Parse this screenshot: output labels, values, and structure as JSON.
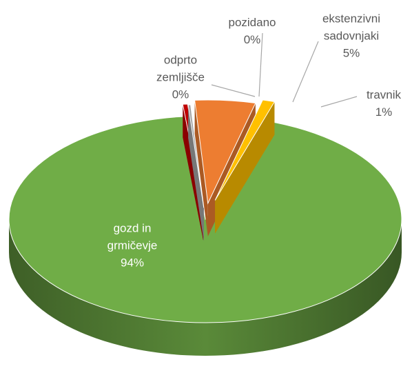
{
  "chart_data": {
    "type": "pie3d",
    "categories": [
      "odprto zemljišče",
      "pozidano",
      "ekstenzivni sadovnjaki",
      "travnik",
      "gozd in grmičevje"
    ],
    "values": [
      0.4,
      0.2,
      5,
      1,
      94
    ],
    "value_labels": [
      "0%",
      "0%",
      "5%",
      "1%",
      "94%"
    ],
    "colors": [
      "#c00000",
      "#a5a5a5",
      "#ed7d31",
      "#ffc000",
      "#70ad47"
    ]
  }
}
